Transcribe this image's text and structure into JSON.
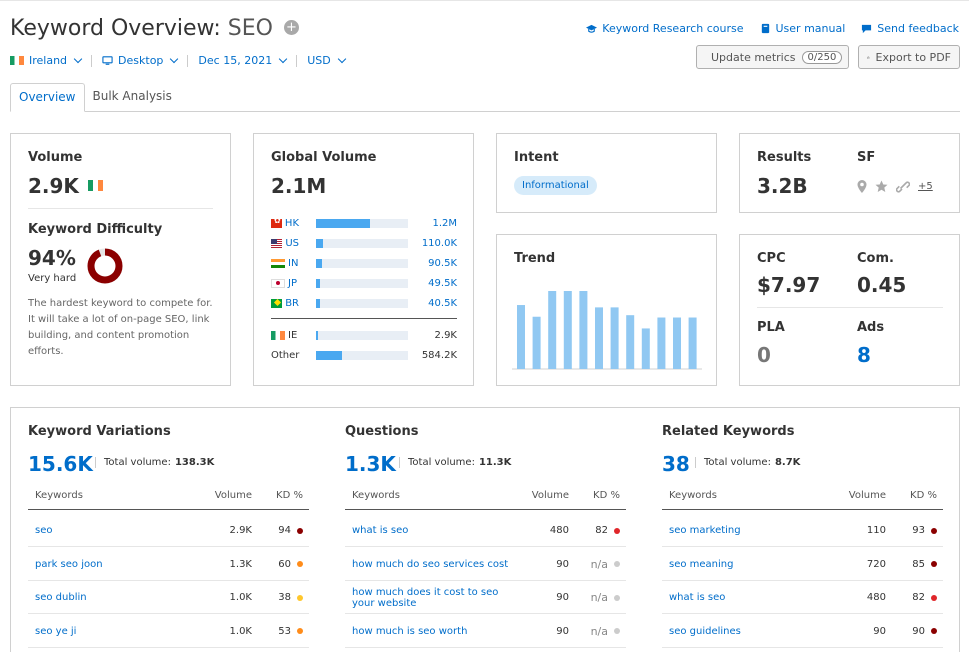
{
  "header": {
    "title_prefix": "Keyword Overview:",
    "keyword": "SEO",
    "plus": "+",
    "links": [
      {
        "label": "Keyword Research course",
        "icon": "graduation-cap-icon"
      },
      {
        "label": "User manual",
        "icon": "book-icon"
      },
      {
        "label": "Send feedback",
        "icon": "chat-bubble-icon"
      }
    ]
  },
  "filters": {
    "country": "Ireland",
    "device": "Desktop",
    "date": "Dec 15, 2021",
    "currency": "USD"
  },
  "buttons": {
    "update_label": "Update metrics",
    "update_count": "0/250",
    "export_label": "Export to PDF"
  },
  "tabs": [
    {
      "label": "Overview",
      "active": true
    },
    {
      "label": "Bulk Analysis",
      "active": false
    }
  ],
  "volume": {
    "label": "Volume",
    "value": "2.9K",
    "kd_label": "Keyword Difficulty",
    "kd_value": "94%",
    "kd_level": "Very hard",
    "kd_fraction": 0.94,
    "kd_color": "#8b0000",
    "kd_desc": "The hardest keyword to compete for. It will take a lot of on-page SEO, link building, and content promotion efforts."
  },
  "global_volume": {
    "label": "Global Volume",
    "value": "2.1M",
    "countries": [
      {
        "code": "HK",
        "value": "1.2M",
        "share": 0.59
      },
      {
        "code": "US",
        "value": "110.0K",
        "share": 0.08
      },
      {
        "code": "IN",
        "value": "90.5K",
        "share": 0.07
      },
      {
        "code": "JP",
        "value": "49.5K",
        "share": 0.04
      },
      {
        "code": "BR",
        "value": "40.5K",
        "share": 0.04
      }
    ],
    "local": {
      "code": "IE",
      "value": "2.9K",
      "share": 0.02
    },
    "other": {
      "label": "Other",
      "value": "584.2K",
      "share": 0.28
    }
  },
  "intent": {
    "label": "Intent",
    "badge": "Informational"
  },
  "trend": {
    "label": "Trend",
    "values": [
      0.82,
      0.67,
      1.0,
      1.0,
      1.0,
      0.79,
      0.79,
      0.69,
      0.52,
      0.66,
      0.66,
      0.66
    ]
  },
  "results": {
    "label": "Results",
    "value": "3.2B",
    "sf_label": "SF",
    "sf_more": "+5"
  },
  "cpc": {
    "cpc_label": "CPC",
    "cpc_value": "$7.97",
    "com_label": "Com.",
    "com_value": "0.45",
    "pla_label": "PLA",
    "pla_value": "0",
    "ads_label": "Ads",
    "ads_value": "8"
  },
  "variations": {
    "title": "Keyword Variations",
    "count": "15.6K",
    "total_label": "Total volume:",
    "total_value": "138.3K",
    "col_kw": "Keywords",
    "col_vol": "Volume",
    "col_kd": "KD %",
    "rows": [
      {
        "kw": "seo",
        "vol": "2.9K",
        "kd": "94",
        "color": "#8b0000"
      },
      {
        "kw": "park seo joon",
        "vol": "1.3K",
        "kd": "60",
        "color": "#ff8c1a"
      },
      {
        "kw": "seo dublin",
        "vol": "1.0K",
        "kd": "38",
        "color": "#ffc72c"
      },
      {
        "kw": "seo ye ji",
        "vol": "1.0K",
        "kd": "53",
        "color": "#ff8c1a"
      }
    ]
  },
  "questions": {
    "title": "Questions",
    "count": "1.3K",
    "total_label": "Total volume:",
    "total_value": "11.3K",
    "col_kw": "Keywords",
    "col_vol": "Volume",
    "col_kd": "KD %",
    "rows": [
      {
        "kw": "what is seo",
        "vol": "480",
        "kd": "82",
        "color": "#e0262a"
      },
      {
        "kw": "how much do seo services cost",
        "vol": "90",
        "kd": "n/a",
        "color": "#cccccc"
      },
      {
        "kw": "how much does it cost to seo your website",
        "vol": "90",
        "kd": "n/a",
        "color": "#cccccc"
      },
      {
        "kw": "how much is seo worth",
        "vol": "90",
        "kd": "n/a",
        "color": "#cccccc"
      }
    ]
  },
  "related": {
    "title": "Related Keywords",
    "count": "38",
    "total_label": "Total volume:",
    "total_value": "8.7K",
    "col_kw": "Keywords",
    "col_vol": "Volume",
    "col_kd": "KD %",
    "rows": [
      {
        "kw": "seo marketing",
        "vol": "110",
        "kd": "93",
        "color": "#8b0000"
      },
      {
        "kw": "seo meaning",
        "vol": "720",
        "kd": "85",
        "color": "#8b0000"
      },
      {
        "kw": "what is seo",
        "vol": "480",
        "kd": "82",
        "color": "#e0262a"
      },
      {
        "kw": "seo guidelines",
        "vol": "90",
        "kd": "90",
        "color": "#8b0000"
      }
    ]
  }
}
